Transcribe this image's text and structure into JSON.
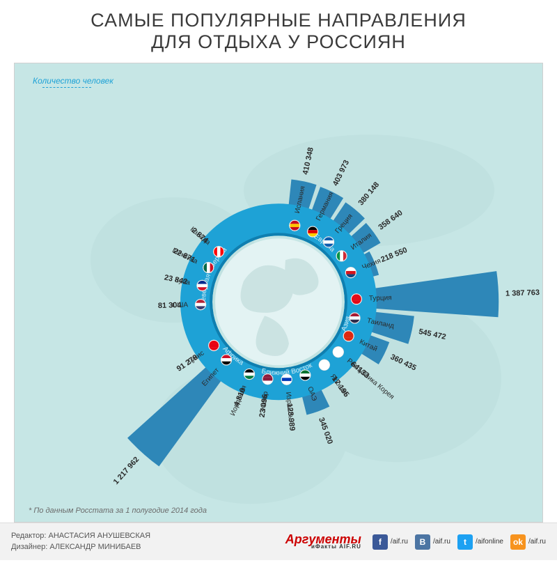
{
  "title_line1": "САМЫЕ ПОПУЛЯРНЫЕ НАПРАВЛЕНИЯ",
  "title_line2": "ДЛЯ ОТДЫХА У РОССИЯН",
  "legend_label": "Количество человек",
  "source_note": "* По данным Росстата за 1 полугодие 2014 года",
  "credits_editor_label": "Редактор:",
  "credits_editor": "Анастасия Анушевская",
  "credits_designer_label": "Дизайнер:",
  "credits_designer": "Александр Минибаев",
  "brand_name": "Аргументы",
  "brand_sub": "иФакты AIF.RU",
  "social": [
    {
      "name": "fb",
      "bg": "#3b5998",
      "glyph": "f",
      "text": "/aif.ru"
    },
    {
      "name": "vk",
      "bg": "#4c75a3",
      "glyph": "B",
      "text": "/aif.ru"
    },
    {
      "name": "tw",
      "bg": "#1da1f2",
      "glyph": "t",
      "text": "/aifonline"
    },
    {
      "name": "ok",
      "bg": "#f7931e",
      "glyph": "ok",
      "text": "/aif.ru"
    }
  ],
  "chart": {
    "type": "radial-bar",
    "background_color": "#c6e6e5",
    "ring_outer_color": "#1ea2d6",
    "ring_inner_color": "#0f7fb0",
    "globe_fill": "#e3f3f3",
    "globe_land": "#bcd9d8",
    "bar_color": "#2e87b8",
    "label_color": "#2a2a2a",
    "value_color": "#2a2a2a",
    "region_label_color": "#cfeaf4",
    "inner_radius": 95,
    "ring_radius": 118,
    "max_bar_len": 200,
    "max_value": 1400000,
    "font_label": 10,
    "font_value": 11,
    "regions": [
      {
        "name": "Европа",
        "start": 3,
        "end": 7,
        "mid_angle": 38
      },
      {
        "name": "Азия",
        "start": 8,
        "end": 12,
        "mid_angle": 108
      },
      {
        "name": "Ближний Восток",
        "start": 13,
        "end": 17,
        "mid_angle": 173
      },
      {
        "name": "Африка",
        "start": 18,
        "end": 19,
        "mid_angle": 220
      },
      {
        "name": "Северная Америка",
        "start": 20,
        "end": 23,
        "mid_angle": 291
      }
    ],
    "countries": [
      {
        "angle": 12,
        "label": "Испания",
        "value": 410348,
        "value_fmt": "410 348",
        "flag_colors": [
          "#c60b1e",
          "#ffc400",
          "#c60b1e"
        ]
      },
      {
        "angle": 26,
        "label": "Германия",
        "value": 403973,
        "value_fmt": "403 973",
        "flag_colors": [
          "#000",
          "#dd0000",
          "#ffce00"
        ]
      },
      {
        "angle": 40,
        "label": "Греция",
        "value": 380148,
        "value_fmt": "380 148",
        "flag_colors": [
          "#0d5eaf",
          "#fff",
          "#0d5eaf"
        ]
      },
      {
        "angle": 54,
        "label": "Италия",
        "value": 358640,
        "value_fmt": "358 640",
        "flag_colors": [
          "#009246",
          "#fff",
          "#ce2b37"
        ],
        "flag_vert": true
      },
      {
        "angle": 68,
        "label": "Чехия",
        "value": 218550,
        "value_fmt": "218 550",
        "flag_colors": [
          "#fff",
          "#d7141a",
          "#11457e"
        ]
      },
      {
        "angle": 88,
        "label": "Турция",
        "value": 1387763,
        "value_fmt": "1 387 763",
        "flag_colors": [
          "#e30a17",
          "#e30a17",
          "#e30a17"
        ]
      },
      {
        "angle": 102,
        "label": "Таиланд",
        "value": 545472,
        "value_fmt": "545 472",
        "flag_colors": [
          "#a51931",
          "#f4f5f8",
          "#2d2a4a"
        ]
      },
      {
        "angle": 116,
        "label": "Китай",
        "value": 360435,
        "value_fmt": "360 435",
        "flag_colors": [
          "#de2910",
          "#de2910",
          "#de2910"
        ]
      },
      {
        "angle": 130,
        "label": "Республика Корея",
        "value": 64133,
        "value_fmt": "64133",
        "flag_colors": [
          "#fff",
          "#fff",
          "#fff"
        ]
      },
      {
        "angle": 144,
        "label": "Япония",
        "value": 17195,
        "value_fmt": "17 195",
        "flag_colors": [
          "#fff",
          "#fff",
          "#fff"
        ]
      },
      {
        "angle": 160,
        "label": "ОАЭ",
        "value": 345020,
        "value_fmt": "345 020",
        "flag_colors": [
          "#00732f",
          "#fff",
          "#000"
        ]
      },
      {
        "angle": 174,
        "label": "Израиль",
        "value": 128989,
        "value_fmt": "128 989",
        "flag_colors": [
          "#fff",
          "#0038b8",
          "#fff"
        ]
      },
      {
        "angle": 188,
        "label": "Катар",
        "value": 23096,
        "value_fmt": "23 096",
        "flag_colors": [
          "#8d1b3d",
          "#8d1b3d",
          "#fff"
        ]
      },
      {
        "angle": 202,
        "label": "Иордания",
        "value": 4810,
        "value_fmt": "4 810",
        "flag_colors": [
          "#000",
          "#fff",
          "#007a3d"
        ]
      },
      {
        "angle": 222,
        "label": "Египет",
        "value": 1217962,
        "value_fmt": "1 217 962",
        "flag_colors": [
          "#ce1126",
          "#fff",
          "#000"
        ]
      },
      {
        "angle": 236,
        "label": "Тунис",
        "value": 91278,
        "value_fmt": "91 278",
        "flag_colors": [
          "#e70013",
          "#e70013",
          "#e70013"
        ]
      },
      {
        "angle": 268,
        "label": "США",
        "value": 81304,
        "value_fmt": "81 304",
        "flag_colors": [
          "#b22234",
          "#fff",
          "#3c3b6e"
        ]
      },
      {
        "angle": 282,
        "label": "Куба",
        "value": 23842,
        "value_fmt": "23 842",
        "flag_colors": [
          "#002a8f",
          "#fff",
          "#cf142b"
        ]
      },
      {
        "angle": 296,
        "label": "Мексика",
        "value": 22871,
        "value_fmt": "22 871",
        "flag_colors": [
          "#006847",
          "#fff",
          "#ce1126"
        ],
        "flag_vert": true
      },
      {
        "angle": 310,
        "label": "Канада",
        "value": 2874,
        "value_fmt": "2 874",
        "flag_colors": [
          "#ff0000",
          "#fff",
          "#ff0000"
        ],
        "flag_vert": true
      }
    ]
  }
}
